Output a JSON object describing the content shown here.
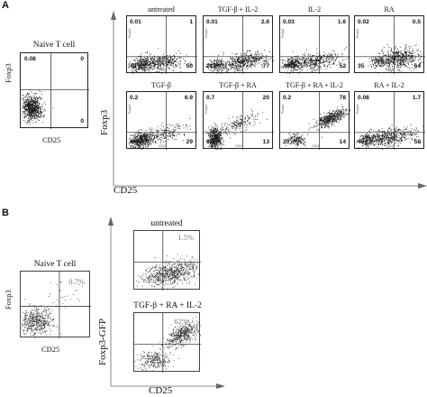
{
  "panel_a": {
    "letter": "A",
    "naive": {
      "title": "Naive T cell",
      "ylabel": "Foxp3",
      "xlabel": "CD25",
      "quadrants": {
        "ul": "0.08",
        "ur": "0",
        "ll": "",
        "lr": "0"
      }
    },
    "grid": {
      "ylabel": "Foxp3",
      "xlabel": "CD25",
      "micro_y": "FoxpS",
      "micro_x": "CD25"
    },
    "plots": [
      {
        "title": "untreated",
        "quadrants": {
          "ul": "0.01",
          "ur": "1",
          "ll": "49",
          "lr": "50"
        }
      },
      {
        "title": "TGF-β + IL-2",
        "quadrants": {
          "ul": "0.01",
          "ur": "2.6",
          "ll": "21",
          "lr": "77"
        }
      },
      {
        "title": "IL-2",
        "quadrants": {
          "ul": "0.03",
          "ur": "1.6",
          "ll": "46",
          "lr": "52"
        }
      },
      {
        "title": "RA",
        "quadrants": {
          "ul": "0.02",
          "ur": "0.5",
          "ll": "35",
          "lr": "64"
        }
      },
      {
        "title": "TGF-β",
        "quadrants": {
          "ul": "0.2",
          "ur": "6.9",
          "ll": "64",
          "lr": "29"
        }
      },
      {
        "title": "TGF-β + RA",
        "quadrants": {
          "ul": "0.7",
          "ur": "20",
          "ll": "67",
          "lr": "13"
        }
      },
      {
        "title": "TGF-β + RA + IL-2",
        "quadrants": {
          "ul": "0.2",
          "ur": "78",
          "ll": "20",
          "lr": "14"
        }
      },
      {
        "title": "RA + IL-2",
        "quadrants": {
          "ul": "0.08",
          "ur": "1.7",
          "ll": "40",
          "lr": "58"
        }
      }
    ]
  },
  "panel_b": {
    "letter": "B",
    "naive": {
      "title": "Naive T cell",
      "ylabel": "Foxp3",
      "xlabel": "CD25",
      "ur": "0.7%"
    },
    "ylabel": "Foxp3-GFP",
    "xlabel": "CD25",
    "plots": [
      {
        "title": "untreated",
        "ur": "1.5%"
      },
      {
        "title": "TGF-β + RA + IL-2",
        "ur": "62%"
      }
    ]
  }
}
